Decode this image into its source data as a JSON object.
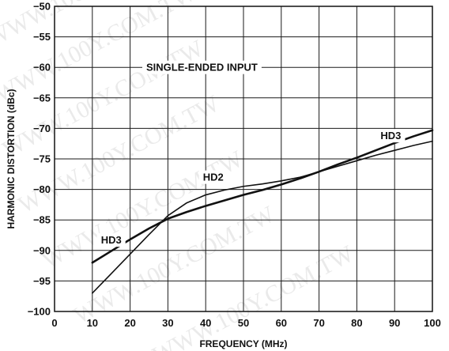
{
  "chart_data": {
    "type": "line",
    "title": "",
    "xlabel": "FREQUENCY (MHz)",
    "ylabel": "HARMONIC DISTORTION (dBc)",
    "xlim": [
      0,
      100
    ],
    "ylim": [
      -100,
      -50
    ],
    "x_ticks": [
      0,
      10,
      20,
      30,
      40,
      50,
      60,
      70,
      80,
      90,
      100
    ],
    "y_ticks": [
      -50,
      -55,
      -60,
      -65,
      -70,
      -75,
      -80,
      -85,
      -90,
      -95,
      -100
    ],
    "x_tick_labels": [
      "0",
      "10",
      "20",
      "30",
      "40",
      "50",
      "60",
      "70",
      "80",
      "90",
      "100"
    ],
    "y_tick_labels": [
      "−50",
      "−55",
      "−60",
      "−65",
      "−70",
      "−75",
      "−80",
      "−85",
      "−90",
      "−95",
      "−100"
    ],
    "grid": true,
    "legend": "none",
    "annotations": [
      {
        "text": "SINGLE-ENDED INPUT",
        "x": 39,
        "y": -60
      },
      {
        "text": "HD2",
        "x": 42,
        "y": -78
      },
      {
        "text": "HD3",
        "x": 89,
        "y": -71.2
      },
      {
        "text": "HD3",
        "x": 15,
        "y": -88.3
      }
    ],
    "series": [
      {
        "name": "HD2",
        "x": [
          10,
          15,
          20,
          25,
          30,
          35,
          40,
          45,
          50,
          55,
          60,
          65,
          70,
          75,
          80,
          85,
          90,
          95,
          100
        ],
        "y": [
          -97,
          -93.8,
          -90.6,
          -87.4,
          -84.3,
          -82.2,
          -80.9,
          -80.1,
          -79.5,
          -79.1,
          -78.6,
          -78.0,
          -77.1,
          -76.2,
          -75.3,
          -74.4,
          -73.6,
          -72.8,
          -72.1
        ]
      },
      {
        "name": "HD3",
        "x": [
          10,
          15,
          20,
          25,
          30,
          35,
          40,
          45,
          50,
          55,
          60,
          65,
          70,
          75,
          80,
          85,
          90,
          95,
          100
        ],
        "y": [
          -92,
          -90.1,
          -88.2,
          -86.4,
          -84.8,
          -83.7,
          -82.7,
          -81.8,
          -80.9,
          -80.1,
          -79.2,
          -78.2,
          -77.1,
          -75.9,
          -74.8,
          -73.6,
          -72.4,
          -71.3,
          -70.3
        ]
      }
    ]
  },
  "watermarks": [
    "WWW.100Y.COM.TW",
    "WWW.100Y.COM.TW",
    "WWW.100Y.COM.TW",
    "WWW.100Y.COM.TW",
    "WWW.100Y.COM.TW",
    "WWW.100Y.COM.TW",
    "WWW.100Y.COM.TW"
  ]
}
